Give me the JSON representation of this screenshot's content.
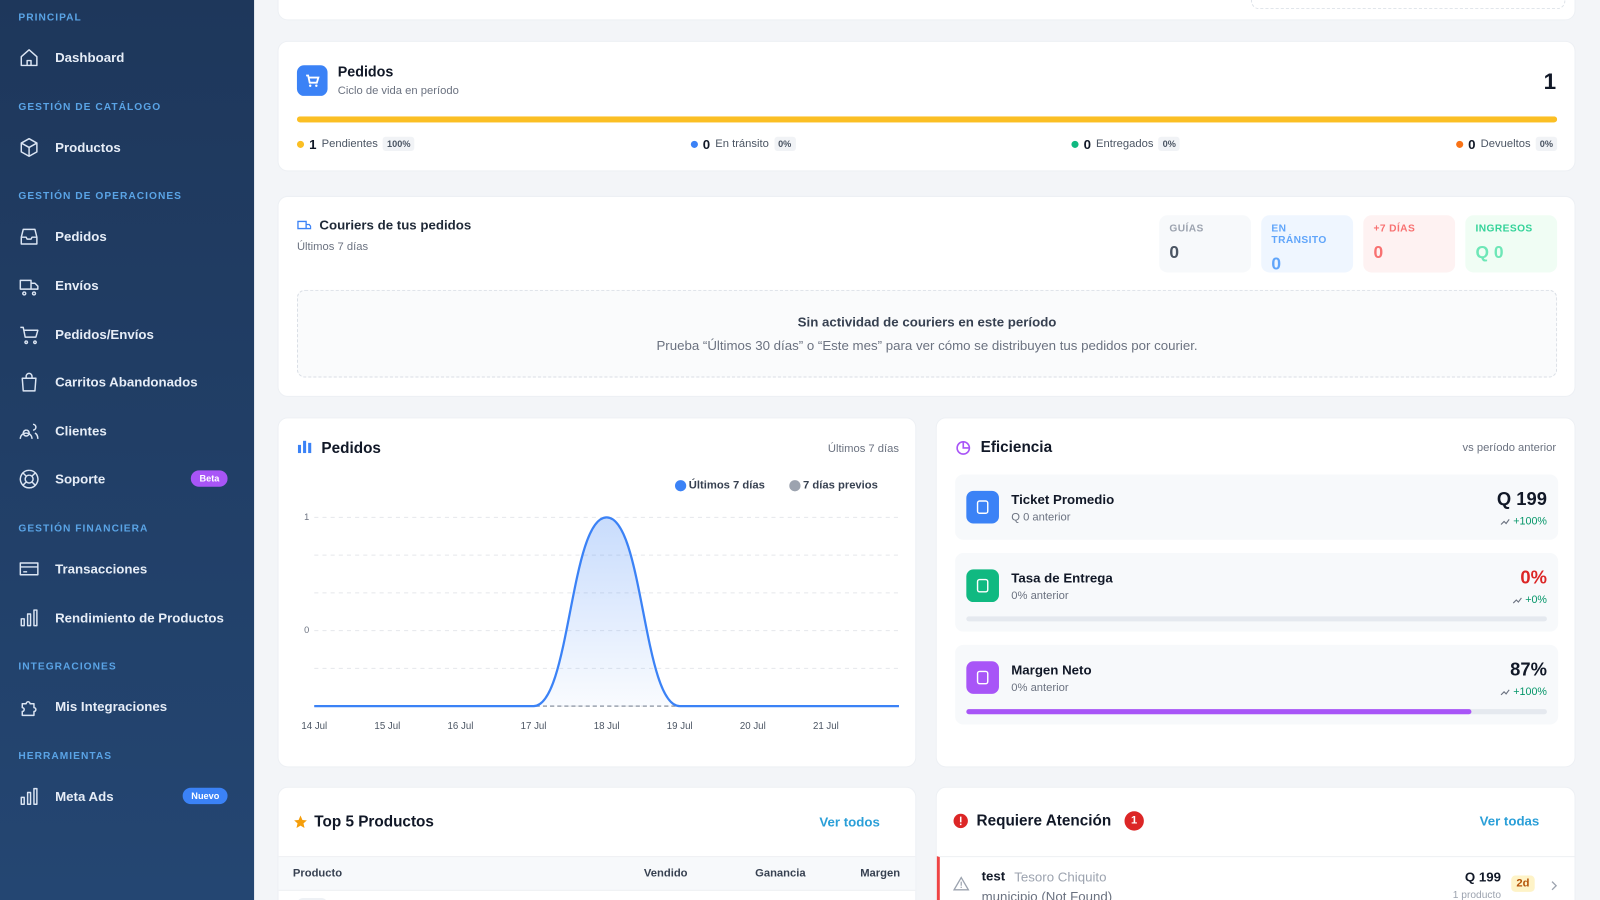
{
  "sidebar": {
    "sections": [
      {
        "label": "PRINCIPAL",
        "items": [
          {
            "label": "Dashboard"
          }
        ]
      },
      {
        "label": "GESTIÓN DE CATÁLOGO",
        "items": [
          {
            "label": "Productos"
          }
        ]
      },
      {
        "label": "GESTIÓN DE OPERACIONES",
        "items": [
          {
            "label": "Pedidos"
          },
          {
            "label": "Envíos"
          },
          {
            "label": "Pedidos/Envíos"
          },
          {
            "label": "Carritos Abandonados"
          },
          {
            "label": "Clientes"
          },
          {
            "label": "Soporte",
            "badge": "Beta"
          }
        ]
      },
      {
        "label": "GESTIÓN FINANCIERA",
        "items": [
          {
            "label": "Transacciones"
          },
          {
            "label": "Rendimiento de Productos"
          }
        ]
      },
      {
        "label": "INTEGRACIONES",
        "items": [
          {
            "label": "Mis Integraciones"
          }
        ]
      },
      {
        "label": "HERRAMIENTAS",
        "items": [
          {
            "label": "Meta Ads",
            "badge": "Nuevo"
          }
        ]
      }
    ]
  },
  "orders_summary": {
    "title": "Pedidos",
    "subtitle": "Ciclo de vida en período",
    "total": 1,
    "statuses": [
      {
        "count": 1,
        "label": "Pendientes",
        "share": "100%",
        "color": "#fbbf24"
      },
      {
        "count": 0,
        "label": "En tránsito",
        "share": "0%",
        "color": "#3b82f6"
      },
      {
        "count": 0,
        "label": "Entregados",
        "share": "0%",
        "color": "#10b981"
      },
      {
        "count": 0,
        "label": "Devueltos",
        "share": "0%",
        "color": "#f97316"
      }
    ]
  },
  "couriers": {
    "title": "Couriers de tus pedidos",
    "subtitle": "Últimos 7 días",
    "stats": [
      {
        "label": "GUÍAS",
        "value": "0"
      },
      {
        "label": "EN TRÁNSITO",
        "value": "0"
      },
      {
        "label": "+7 DÍAS",
        "value": "0"
      },
      {
        "label": "INGRESOS",
        "value": "Q 0"
      }
    ],
    "empty_title": "Sin actividad de couriers en este período",
    "empty_text": "Prueba “Últimos 30 días” o “Este mes” para ver cómo se distribuyen tus pedidos por courier."
  },
  "chart_data": {
    "type": "line",
    "title": "Pedidos",
    "subtitle": "Últimos 7 días",
    "categories": [
      "14 Jul",
      "15 Jul",
      "16 Jul",
      "17 Jul",
      "18 Jul",
      "19 Jul",
      "20 Jul",
      "21 Jul",
      null
    ],
    "series": [
      {
        "name": "Últimos 7 días",
        "color": "#3b82f6",
        "values": [
          0,
          0,
          0,
          0,
          1,
          0,
          0,
          0,
          0
        ]
      },
      {
        "name": "7 días previos",
        "color": "#9ca3af",
        "values": [
          0,
          0,
          0,
          0,
          0,
          0,
          0,
          0,
          0
        ]
      }
    ],
    "ylim": [
      0,
      1
    ],
    "yticks": [
      1,
      {
        "value": 0.4,
        "label": "0"
      }
    ],
    "ygrid": [
      1,
      0.8,
      0.6,
      0.4,
      0.2,
      0
    ],
    "grid": true
  },
  "efficiency": {
    "title": "Eficiencia",
    "subtitle": "vs período anterior",
    "rows": [
      {
        "title": "Ticket Promedio",
        "previous": "Q 0 anterior",
        "value_label": "Q 199",
        "change": "+100%"
      },
      {
        "title": "Tasa de Entrega",
        "previous": "0% anterior",
        "value": 0,
        "value_label": "0%",
        "change": "+0%"
      },
      {
        "title": "Margen Neto",
        "previous": "0% anterior",
        "value": 87,
        "value_label": "87%",
        "change": "+100%"
      }
    ]
  },
  "top_products": {
    "title": "Top 5 Productos",
    "link": "Ver todos",
    "columns": [
      "Producto",
      "Vendido",
      "Ganancia",
      "Margen"
    ]
  },
  "attention": {
    "title": "Requiere Atención",
    "count": 1,
    "link": "Ver todas",
    "items": [
      {
        "name": "test",
        "customer": "Tesoro Chiquito",
        "detail": "municipio (Not Found)",
        "amount": "Q 199",
        "quantity": "1 producto",
        "age": "2d"
      }
    ]
  }
}
